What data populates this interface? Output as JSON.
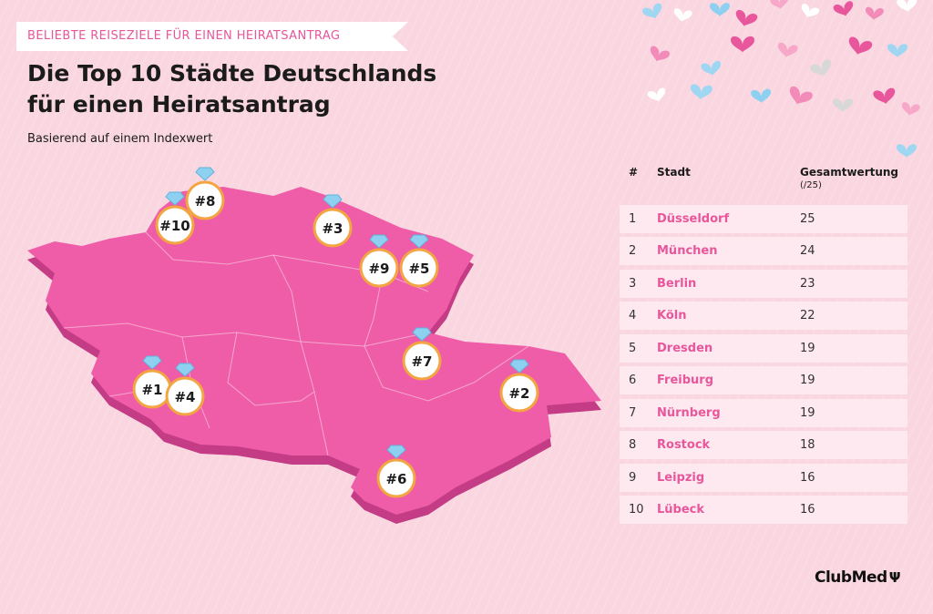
{
  "ribbon_text": "BELIEBTE REISEZIELE FÜR EINEN HEIRATSANTRAG",
  "title": "Die Top 10 Städte Deutschlands für einen Heiratsantrag",
  "subtitle": "Basierend auf einem Indexwert",
  "colors": {
    "map_top": "#ef5da8",
    "map_side": "#c53c86",
    "marker_ring": "#f2a541",
    "ribbon_text": "#e8569b",
    "city_text": "#e8569b",
    "row_bg": "#fde9ef",
    "diamond": "#8ed0f0"
  },
  "table": {
    "col_rank": "#",
    "col_city": "Stadt",
    "col_score": "Gesamtwertung",
    "col_score_unit": "(/25)",
    "rows": [
      {
        "rank": "1",
        "city": "Düsseldorf",
        "score": "25"
      },
      {
        "rank": "2",
        "city": "München",
        "score": "24"
      },
      {
        "rank": "3",
        "city": "Berlin",
        "score": "23"
      },
      {
        "rank": "4",
        "city": "Köln",
        "score": "22"
      },
      {
        "rank": "5",
        "city": "Dresden",
        "score": "19"
      },
      {
        "rank": "6",
        "city": "Freiburg",
        "score": "19"
      },
      {
        "rank": "7",
        "city": "Nürnberg",
        "score": "19"
      },
      {
        "rank": "8",
        "city": "Rostock",
        "score": "18"
      },
      {
        "rank": "9",
        "city": "Leipzig",
        "score": "16"
      },
      {
        "rank": "10",
        "city": "Lübeck",
        "score": "16"
      }
    ]
  },
  "markers": [
    {
      "label": "#1",
      "city": "Düsseldorf"
    },
    {
      "label": "#2",
      "city": "München"
    },
    {
      "label": "#3",
      "city": "Berlin"
    },
    {
      "label": "#4",
      "city": "Köln"
    },
    {
      "label": "#5",
      "city": "Dresden"
    },
    {
      "label": "#6",
      "city": "Freiburg"
    },
    {
      "label": "#7",
      "city": "Nürnberg"
    },
    {
      "label": "#8",
      "city": "Rostock"
    },
    {
      "label": "#9",
      "city": "Leipzig"
    },
    {
      "label": "#10",
      "city": "Lübeck"
    }
  ],
  "logo": {
    "text": "ClubMed",
    "icon": "trident-icon"
  }
}
